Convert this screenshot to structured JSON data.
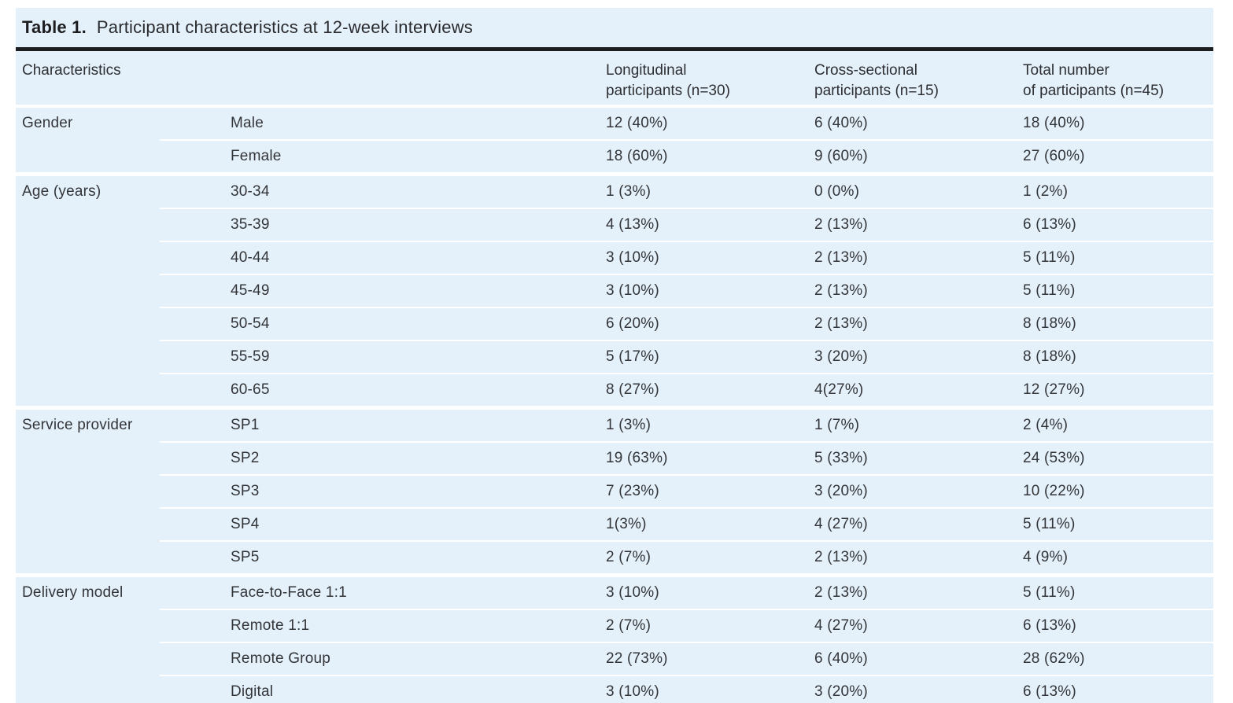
{
  "table": {
    "title_label": "Table 1.",
    "title_text": "Participant characteristics at 12-week interviews",
    "header": {
      "characteristics": "Characteristics",
      "subcategory": "",
      "longitudinal_lines": [
        "Longitudinal",
        "participants (n=30)"
      ],
      "cross_sectional_lines": [
        "Cross-sectional",
        "participants (n=15)"
      ],
      "total_lines": [
        "Total number",
        "of participants (n=45)"
      ]
    },
    "groups": [
      {
        "name": "Gender",
        "rows": [
          {
            "label": "Male",
            "longitudinal": "12 (40%)",
            "cross_sectional": "6 (40%)",
            "total": "18 (40%)"
          },
          {
            "label": "Female",
            "longitudinal": "18 (60%)",
            "cross_sectional": "9 (60%)",
            "total": "27 (60%)"
          }
        ]
      },
      {
        "name": "Age (years)",
        "rows": [
          {
            "label": "30-34",
            "longitudinal": "1 (3%)",
            "cross_sectional": "0 (0%)",
            "total": "1 (2%)"
          },
          {
            "label": "35-39",
            "longitudinal": "4 (13%)",
            "cross_sectional": "2 (13%)",
            "total": "6 (13%)"
          },
          {
            "label": "40-44",
            "longitudinal": "3 (10%)",
            "cross_sectional": "2 (13%)",
            "total": "5 (11%)"
          },
          {
            "label": "45-49",
            "longitudinal": "3 (10%)",
            "cross_sectional": "2 (13%)",
            "total": "5 (11%)"
          },
          {
            "label": "50-54",
            "longitudinal": "6 (20%)",
            "cross_sectional": "2 (13%)",
            "total": "8 (18%)"
          },
          {
            "label": "55-59",
            "longitudinal": "5 (17%)",
            "cross_sectional": "3 (20%)",
            "total": "8 (18%)"
          },
          {
            "label": "60-65",
            "longitudinal": "8 (27%)",
            "cross_sectional": "4(27%)",
            "total": "12 (27%)"
          }
        ]
      },
      {
        "name": "Service provider",
        "rows": [
          {
            "label": "SP1",
            "longitudinal": "1 (3%)",
            "cross_sectional": "1 (7%)",
            "total": "2 (4%)"
          },
          {
            "label": "SP2",
            "longitudinal": "19 (63%)",
            "cross_sectional": "5 (33%)",
            "total": "24 (53%)"
          },
          {
            "label": "SP3",
            "longitudinal": "7 (23%)",
            "cross_sectional": "3 (20%)",
            "total": "10 (22%)"
          },
          {
            "label": "SP4",
            "longitudinal": "1(3%)",
            "cross_sectional": "4 (27%)",
            "total": "5 (11%)"
          },
          {
            "label": "SP5",
            "longitudinal": "2 (7%)",
            "cross_sectional": "2 (13%)",
            "total": "4 (9%)"
          }
        ]
      },
      {
        "name": "Delivery model",
        "rows": [
          {
            "label": "Face-to-Face 1:1",
            "longitudinal": "3 (10%)",
            "cross_sectional": "2 (13%)",
            "total": "5 (11%)"
          },
          {
            "label": "Remote 1:1",
            "longitudinal": "2 (7%)",
            "cross_sectional": "4 (27%)",
            "total": "6 (13%)"
          },
          {
            "label": "Remote Group",
            "longitudinal": "22 (73%)",
            "cross_sectional": "6 (40%)",
            "total": "28 (62%)"
          },
          {
            "label": "Digital",
            "longitudinal": "3 (10%)",
            "cross_sectional": "3 (20%)",
            "total": "6 (13%)"
          }
        ]
      }
    ],
    "colors": {
      "panel_background": "#e4f1fa",
      "separator": "#ffffff",
      "title_rule": "#1d1d1f",
      "text": "#333539"
    }
  }
}
